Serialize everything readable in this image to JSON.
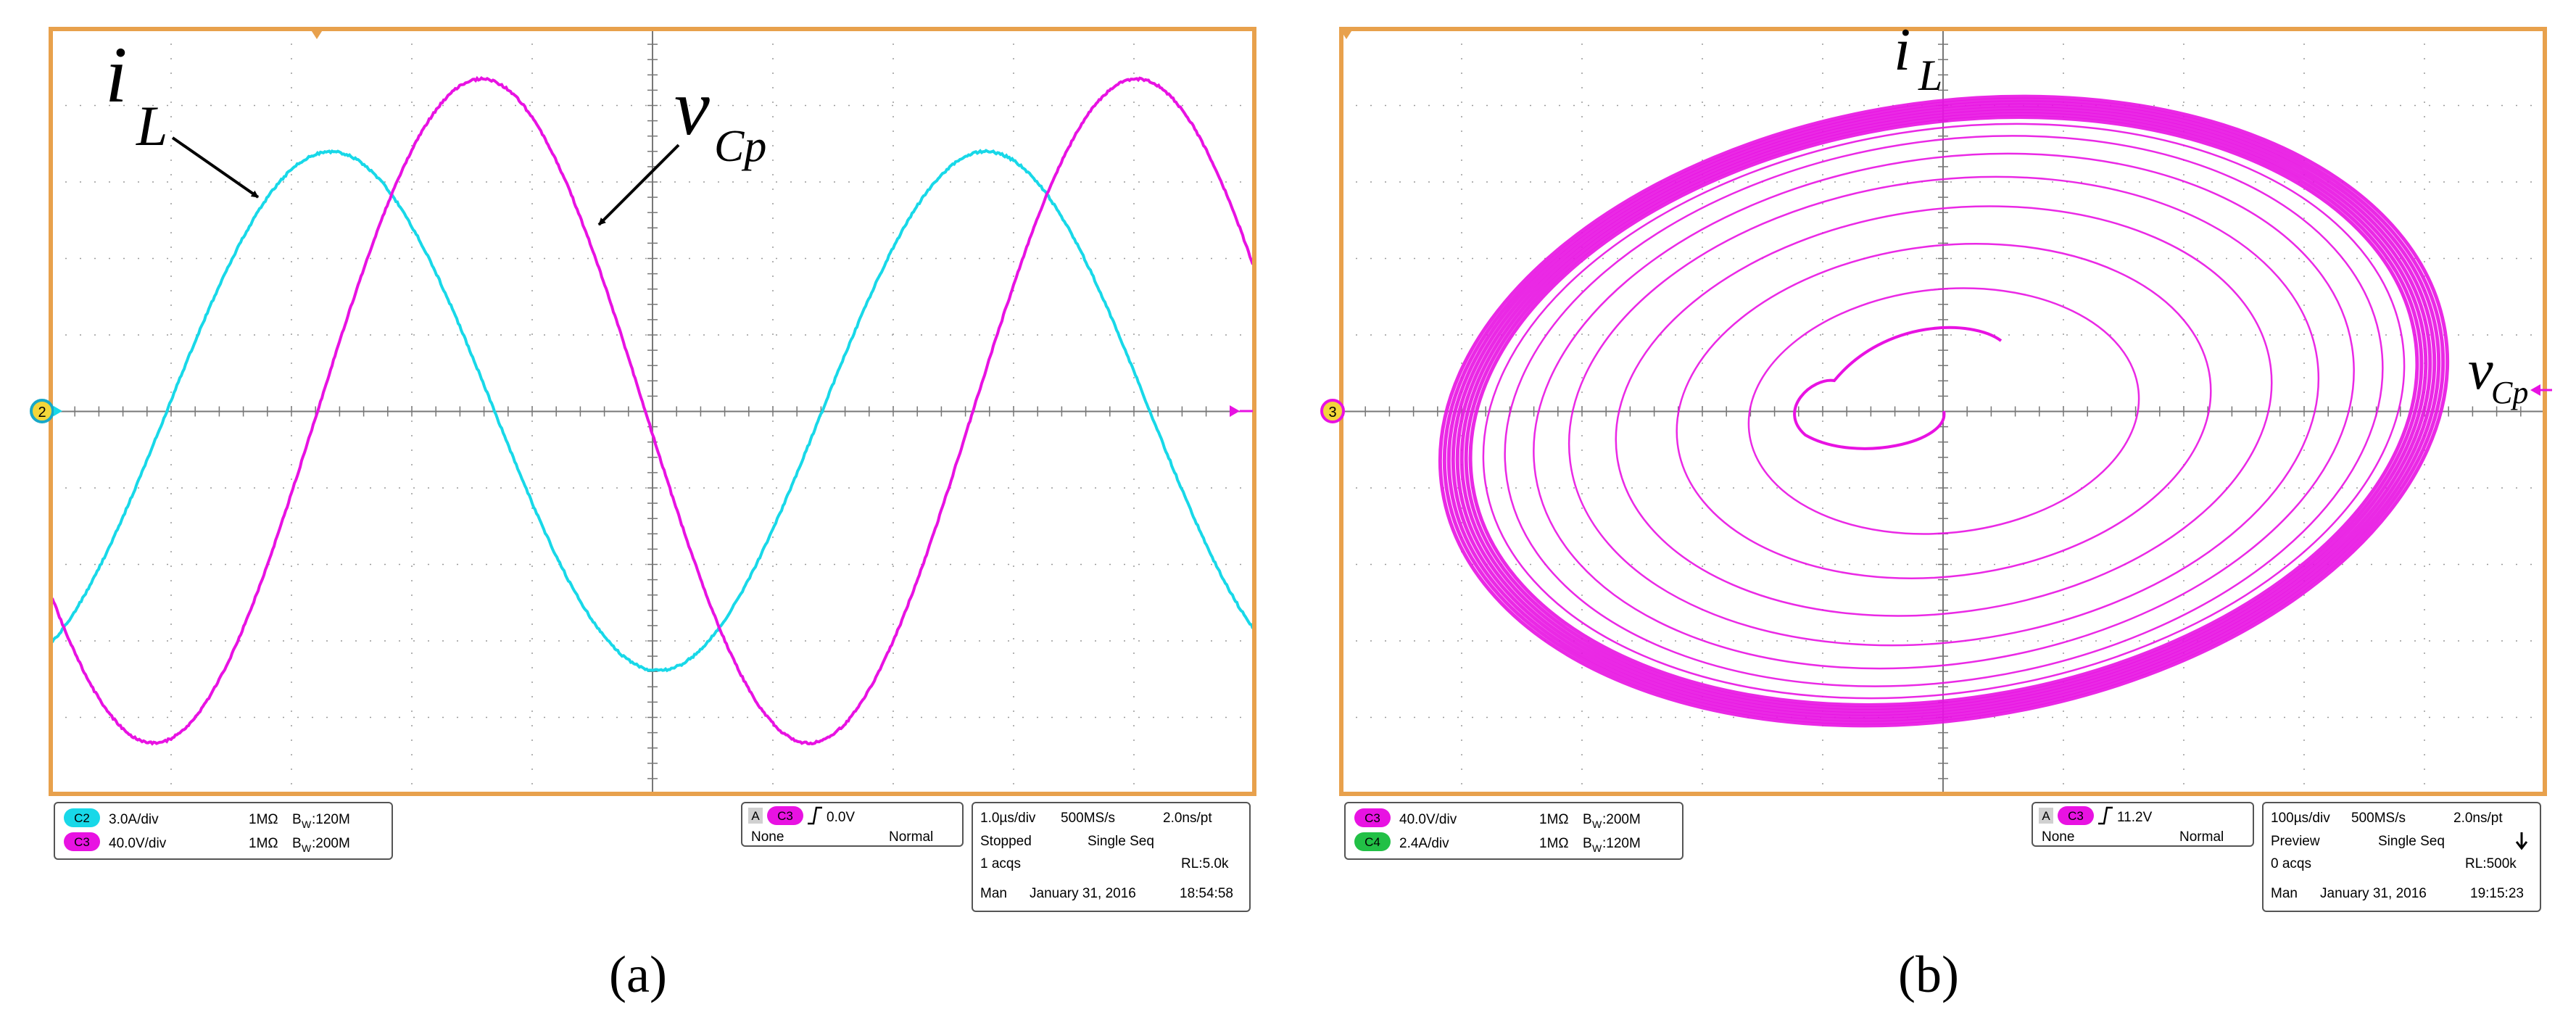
{
  "colors": {
    "graticule_border": "#e8a14c",
    "grid": "#9a9a9a",
    "ch2": "#18d8e8",
    "ch3": "#e812e2",
    "ch4": "#22c046",
    "text": "#000000"
  },
  "panel_a": {
    "caption": "(a)",
    "labels": {
      "trace1_main": "i",
      "trace1_sub": "L",
      "trace2_main": "v",
      "trace2_sub": "Cp"
    },
    "marker_ref": "2",
    "channels": [
      {
        "badge": "C2",
        "scale": "3.0A/div",
        "imp": "1MΩ",
        "bw_b": "B",
        "bw_w": "W",
        "bw_val": ":120M"
      },
      {
        "badge": "C3",
        "scale": "40.0V/div",
        "imp": "1MΩ",
        "bw_b": "B",
        "bw_w": "W",
        "bw_val": ":200M"
      }
    ],
    "trigger": {
      "source_prefix": "A",
      "badge": "C3",
      "level": "0.0V",
      "coupling": "None",
      "mode": "Normal"
    },
    "acq": {
      "timebase": "1.0µs/div",
      "rate": "500MS/s",
      "res": "2.0ns/pt",
      "state": "Stopped",
      "seq": "Single Seq",
      "acqs": "1 acqs",
      "rl": "RL:5.0k",
      "man": "Man",
      "date": "January 31, 2016",
      "time": "18:54:58"
    }
  },
  "panel_b": {
    "caption": "(b)",
    "labels": {
      "y_main": "i",
      "y_sub": "L",
      "x_main": "v",
      "x_sub": "Cp"
    },
    "marker_ref": "3",
    "channels": [
      {
        "badge": "C3",
        "scale": "40.0V/div",
        "imp": "1MΩ",
        "bw_b": "B",
        "bw_w": "W",
        "bw_val": ":200M"
      },
      {
        "badge": "C4",
        "scale": "2.4A/div",
        "imp": "1MΩ",
        "bw_b": "B",
        "bw_w": "W",
        "bw_val": ":120M"
      }
    ],
    "trigger": {
      "source_prefix": "A",
      "badge": "C3",
      "level": "11.2V",
      "coupling": "None",
      "mode": "Normal"
    },
    "acq": {
      "timebase": "100µs/div",
      "rate": "500MS/s",
      "res": "2.0ns/pt",
      "state": "Preview",
      "seq": "Single Seq",
      "acqs": "0 acqs",
      "rl": "RL:500k",
      "man": "Man",
      "date": "January 31, 2016",
      "time": "19:15:23"
    }
  }
}
